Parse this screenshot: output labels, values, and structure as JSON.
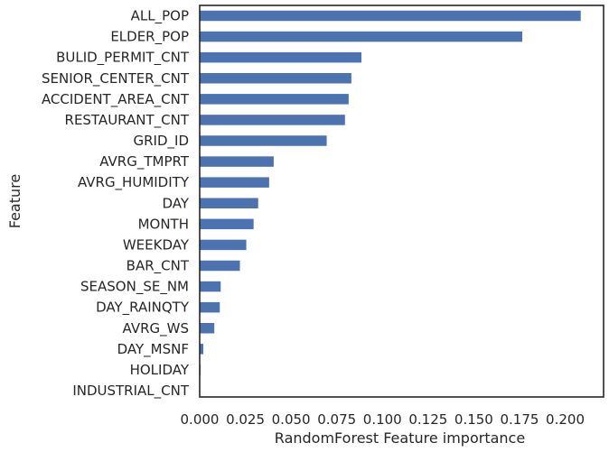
{
  "chart_data": {
    "type": "bar",
    "orientation": "horizontal",
    "xlabel": "RandomForest Feature importance",
    "ylabel": "Feature",
    "xlim": [
      0.0,
      0.221
    ],
    "xticks": [
      "0.000",
      "0.025",
      "0.050",
      "0.075",
      "0.100",
      "0.125",
      "0.150",
      "0.175",
      "0.200"
    ],
    "categories": [
      "ALL_POP",
      "ELDER_POP",
      "BULID_PERMIT_CNT",
      "SENIOR_CENTER_CNT",
      "ACCIDENT_AREA_CNT",
      "RESTAURANT_CNT",
      "GRID_ID",
      "AVRG_TMPRT",
      "AVRG_HUMIDITY",
      "DAY",
      "MONTH",
      "WEEKDAY",
      "BAR_CNT",
      "SEASON_SE_NM",
      "DAY_RAINQTY",
      "AVRG_WS",
      "DAY_MSNF",
      "HOLIDAY",
      "INDUSTRIAL_CNT"
    ],
    "values": [
      0.2085,
      0.1765,
      0.0885,
      0.083,
      0.0815,
      0.0795,
      0.0695,
      0.0405,
      0.038,
      0.032,
      0.0295,
      0.0255,
      0.022,
      0.0115,
      0.011,
      0.008,
      0.002,
      0.0005,
      0.0002
    ],
    "bar_color": "#4c72b0",
    "grid": false
  }
}
